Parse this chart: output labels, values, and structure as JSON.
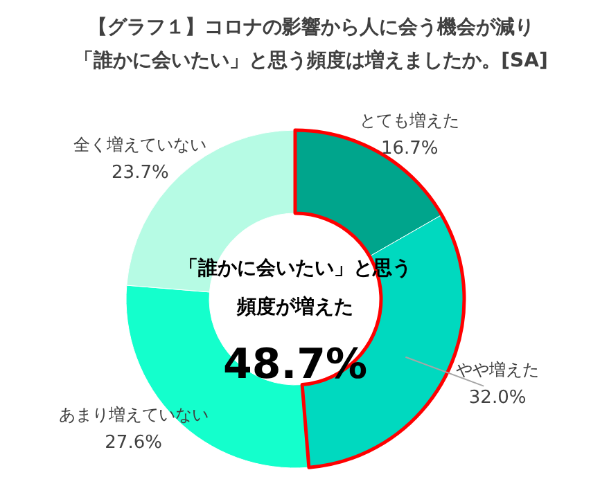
{
  "chart_data": {
    "type": "donut",
    "title": "【グラフ１】コロナの影響から人に会う機会が減り",
    "subtitle": "「誰かに会いたい」と思う頻度は増えましたか。[SA]",
    "categories": [
      "とても増えた",
      "やや増えた",
      "あまり増えていない",
      "全く増えていない"
    ],
    "values": [
      16.7,
      32.0,
      27.6,
      23.7
    ],
    "colors": [
      "#00a58c",
      "#00d9bf",
      "#14ffcc",
      "#b6fbe4"
    ],
    "value_labels": [
      "16.7%",
      "32.0%",
      "27.6%",
      "23.7%"
    ],
    "annotations": [
      "「誰かに会いたい」と思う",
      "頻度が増えた",
      "48.7%"
    ]
  }
}
